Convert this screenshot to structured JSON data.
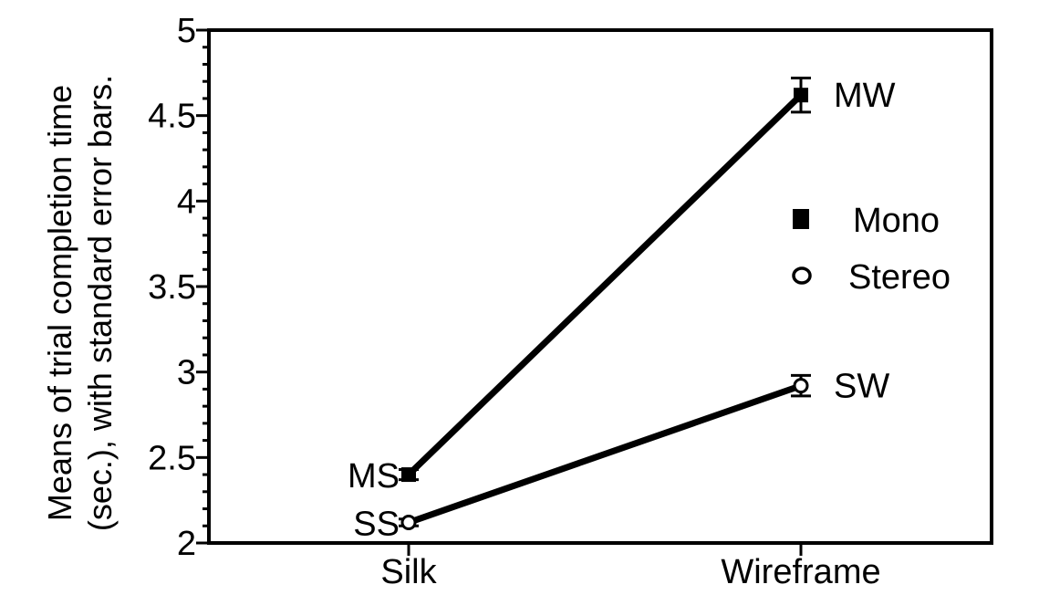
{
  "chart_data": {
    "type": "line",
    "categories": [
      "Silk",
      "Wireframe"
    ],
    "ylabel_lines": [
      "Means of trial completion time",
      "(sec.), with  standard  error bars."
    ],
    "ylim": [
      2,
      5
    ],
    "yticks": [
      2,
      2.5,
      3,
      3.5,
      4,
      4.5,
      5
    ],
    "ytick_labels": [
      "2",
      "2.5",
      "3",
      "3.5",
      "4",
      "4.5",
      "5"
    ],
    "grid": false,
    "legend_position": "right",
    "series": [
      {
        "name": "Mono",
        "marker": "filled-square",
        "values": [
          2.4,
          4.62
        ],
        "errors": [
          0.03,
          0.1
        ],
        "point_labels": [
          "MS",
          "MW"
        ]
      },
      {
        "name": "Stereo",
        "marker": "open-circle",
        "values": [
          2.12,
          2.92
        ],
        "errors": [
          0.02,
          0.06
        ],
        "point_labels": [
          "SS",
          "SW"
        ]
      }
    ]
  }
}
